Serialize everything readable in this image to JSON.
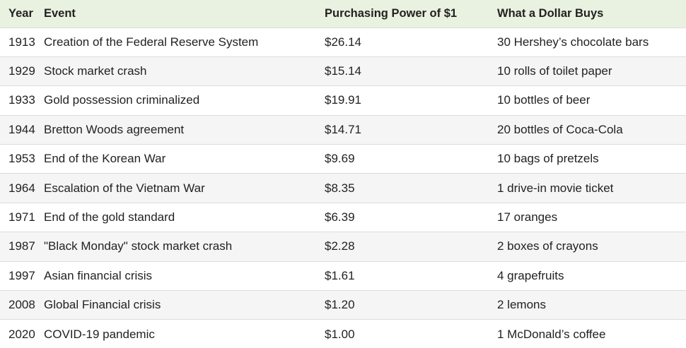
{
  "table": {
    "headers": {
      "year": "Year",
      "event": "Event",
      "power": "Purchasing Power of $1",
      "buys": "What a Dollar Buys"
    },
    "rows": [
      {
        "year": "1913",
        "event": "Creation of the Federal Reserve System",
        "power": "$26.14",
        "buys": "30 Hershey’s chocolate bars"
      },
      {
        "year": "1929",
        "event": "Stock market crash",
        "power": "$15.14",
        "buys": "10 rolls of toilet paper"
      },
      {
        "year": "1933",
        "event": "Gold possession criminalized",
        "power": "$19.91",
        "buys": "10 bottles of beer"
      },
      {
        "year": "1944",
        "event": "Bretton Woods agreement",
        "power": "$14.71",
        "buys": "20 bottles of Coca-Cola"
      },
      {
        "year": "1953",
        "event": "End of the Korean War",
        "power": "$9.69",
        "buys": "10 bags of pretzels"
      },
      {
        "year": "1964",
        "event": "Escalation of the Vietnam War",
        "power": "$8.35",
        "buys": "1 drive-in movie ticket"
      },
      {
        "year": "1971",
        "event": "End of the gold standard",
        "power": "$6.39",
        "buys": "17 oranges"
      },
      {
        "year": "1987",
        "event": "\"Black Monday\" stock market crash",
        "power": "$2.28",
        "buys": "2 boxes of crayons"
      },
      {
        "year": "1997",
        "event": "Asian financial crisis",
        "power": "$1.61",
        "buys": "4 grapefruits"
      },
      {
        "year": "2008",
        "event": "Global Financial crisis",
        "power": "$1.20",
        "buys": "2 lemons"
      },
      {
        "year": "2020",
        "event": "COVID-19 pandemic",
        "power": "$1.00",
        "buys": "1 McDonald’s coffee"
      }
    ]
  },
  "colors": {
    "header_bg": "#e9f2e0",
    "row_alt_bg": "#f5f5f5",
    "row_border": "#dcdcdc",
    "text": "#222222"
  }
}
